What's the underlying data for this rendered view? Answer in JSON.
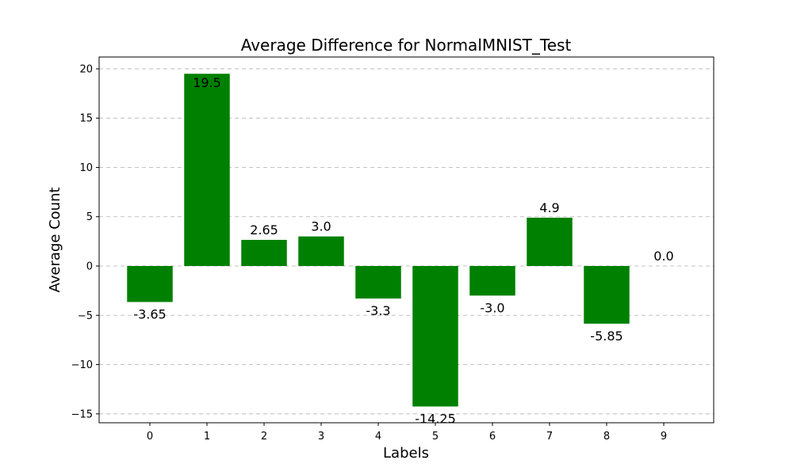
{
  "chart_data": {
    "type": "bar",
    "title": "Average Difference for NormalMNIST_Test",
    "xlabel": "Labels",
    "ylabel": "Average Count",
    "categories": [
      "0",
      "1",
      "2",
      "3",
      "4",
      "5",
      "6",
      "7",
      "8",
      "9"
    ],
    "values": [
      -3.65,
      19.5,
      2.65,
      3.0,
      -3.3,
      -14.25,
      -3.0,
      4.9,
      -5.85,
      0.0
    ],
    "data_labels": [
      "-3.65",
      "19.5",
      "2.65",
      "3.0",
      "-3.3",
      "-14.25",
      "-3.0",
      "4.9",
      "-5.85",
      "0.0"
    ],
    "ylim": [
      -15.9,
      21.2
    ],
    "yticks": [
      -15,
      -10,
      -5,
      0,
      5,
      10,
      15,
      20
    ],
    "ytick_labels": [
      "−15",
      "−10",
      "−5",
      "0",
      "5",
      "10",
      "15",
      "20"
    ],
    "bar_color": "#008000",
    "grid": "y-dashed",
    "legend": "none"
  }
}
